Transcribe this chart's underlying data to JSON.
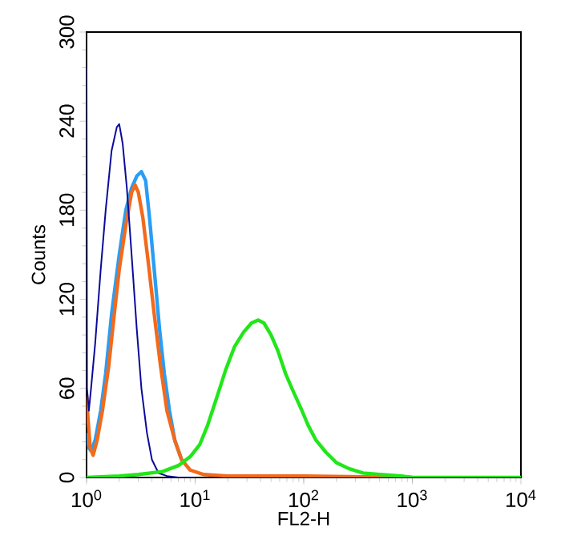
{
  "chart_data": {
    "type": "line",
    "xlabel": "FL2-H",
    "ylabel": "Counts",
    "log": "x",
    "grid": false,
    "marker": "none",
    "line_style": "solid",
    "xlim": [
      1,
      10000
    ],
    "ylim": [
      0,
      300
    ],
    "xticks": [
      {
        "value": 1,
        "label": "10$^{0}$"
      },
      {
        "value": 10,
        "label": "10$^{1}$"
      },
      {
        "value": 100,
        "label": "10$^{2}$"
      },
      {
        "value": 1000,
        "label": "10$^{3}$"
      },
      {
        "value": 10000,
        "label": "10$^{4}$"
      }
    ],
    "yticks": [
      0,
      60,
      120,
      180,
      240,
      300
    ],
    "series": [
      {
        "color": "#2a9df4",
        "x": [
          1.0,
          1.05,
          1.1,
          1.2,
          1.35,
          1.5,
          1.7,
          2.0,
          2.3,
          2.6,
          2.9,
          3.2,
          3.5,
          3.8,
          4.2,
          4.7,
          5.2,
          5.8,
          6.5,
          7.5
        ],
        "values": [
          30,
          20,
          18,
          25,
          45,
          70,
          110,
          150,
          180,
          195,
          203,
          206,
          200,
          175,
          140,
          100,
          70,
          45,
          25,
          12
        ]
      },
      {
        "color": "#f26a1b",
        "x": [
          1.0,
          1.03,
          1.08,
          1.15,
          1.25,
          1.4,
          1.6,
          1.8,
          2.0,
          2.3,
          2.6,
          2.8,
          3.0,
          3.3,
          3.7,
          4.2,
          4.8,
          5.5,
          6.5,
          7.5,
          9,
          12,
          20,
          100,
          1000
        ],
        "values": [
          55,
          40,
          20,
          15,
          25,
          45,
          75,
          110,
          140,
          170,
          192,
          197,
          192,
          175,
          145,
          110,
          75,
          45,
          25,
          12,
          5,
          2,
          1,
          1,
          0
        ]
      },
      {
        "color": "#0a0a9a",
        "x": [
          1.0,
          1.01,
          1.05,
          1.1,
          1.2,
          1.35,
          1.5,
          1.7,
          1.9,
          2.0,
          2.15,
          2.35,
          2.6,
          2.9,
          3.2,
          3.6,
          4.0,
          4.6,
          5.5,
          7,
          10
        ],
        "values": [
          276,
          60,
          45,
          60,
          90,
          140,
          180,
          220,
          236,
          238,
          225,
          195,
          150,
          100,
          60,
          30,
          12,
          3,
          1,
          0,
          0
        ]
      },
      {
        "color": "#22e61a",
        "x": [
          1,
          2,
          3,
          5,
          7,
          9,
          11,
          13,
          16,
          19,
          23,
          28,
          33,
          38,
          43,
          50,
          58,
          68,
          80,
          95,
          110,
          130,
          160,
          200,
          260,
          350,
          500,
          800,
          1000,
          10000
        ],
        "values": [
          0,
          1,
          2,
          4,
          8,
          14,
          22,
          35,
          55,
          72,
          88,
          98,
          104,
          106,
          104,
          96,
          85,
          70,
          58,
          46,
          35,
          25,
          17,
          10,
          6,
          3,
          2,
          1,
          0,
          0
        ]
      }
    ]
  }
}
